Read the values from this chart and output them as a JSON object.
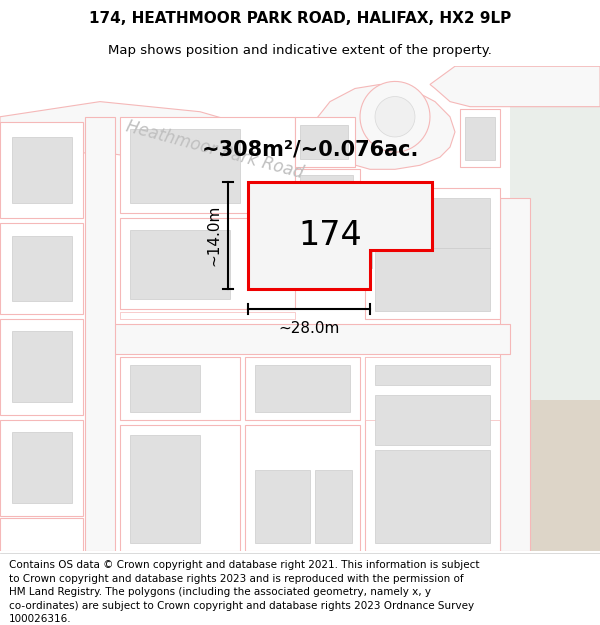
{
  "title_line1": "174, HEATHMOOR PARK ROAD, HALIFAX, HX2 9LP",
  "title_line2": "Map shows position and indicative extent of the property.",
  "footer_text": "Contains OS data © Crown copyright and database right 2021. This information is subject\nto Crown copyright and database rights 2023 and is reproduced with the permission of\nHM Land Registry. The polygons (including the associated geometry, namely x, y\nco-ordinates) are subject to Crown copyright and database rights 2023 Ordnance Survey\n100026316.",
  "area_text": "~308m²/~0.076ac.",
  "property_number": "174",
  "width_label": "~28.0m",
  "height_label": "~14.0m",
  "bg_color": "#ffffff",
  "map_bg": "#ffffff",
  "plot_edge_color": "#ff0000",
  "other_edge_color": "#f5b8b8",
  "building_fill": "#e0e0e0",
  "plot_fill": "#ffffff",
  "green_fill": "#eaeeea",
  "road_label_color": "#c0c0c0",
  "title_fontsize": 11,
  "subtitle_fontsize": 9.5,
  "footer_fontsize": 7.5,
  "area_fontsize": 15,
  "number_fontsize": 24,
  "dim_fontsize": 11,
  "road_label_fontsize": 12
}
